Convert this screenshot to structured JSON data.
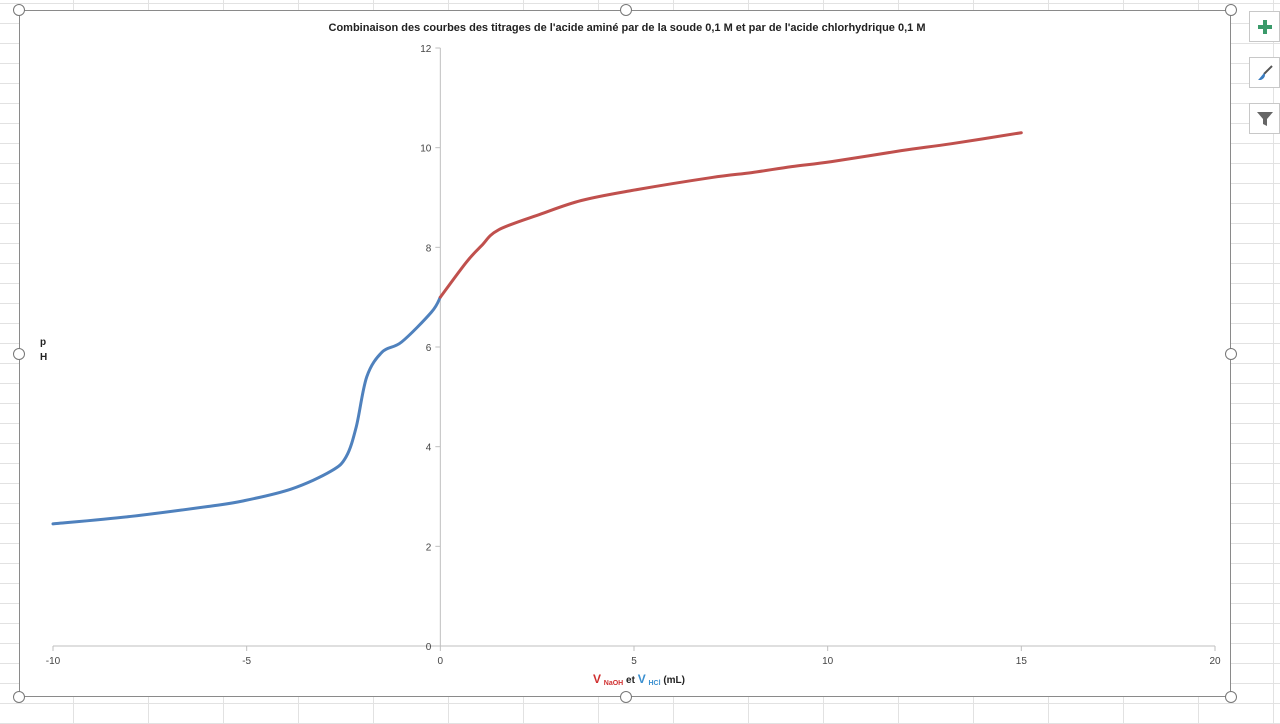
{
  "chart_data": {
    "type": "line",
    "title": "Combinaison des courbes des titrages de l'acide aminé par de la soude 0,1 M et par de l'acide chlorhydrique 0,1 M",
    "xlabel_parts": {
      "v1": "V",
      "sub1": "NaOH",
      "mid": " et ",
      "v2": "V",
      "sub2": "HCl",
      "unit": " (mL)"
    },
    "ylabel_parts": [
      "p",
      "H"
    ],
    "xlim": [
      -10,
      20
    ],
    "ylim": [
      0,
      12
    ],
    "xticks": [
      -10,
      -5,
      0,
      5,
      10,
      15,
      20
    ],
    "yticks": [
      0,
      2,
      4,
      6,
      8,
      10,
      12
    ],
    "grid": false,
    "series": [
      {
        "name": "HCl",
        "color": "#4f81bd",
        "x": [
          -10,
          -8,
          -6,
          -5.1,
          -3.85,
          -2.82,
          -2.43,
          -2.17,
          -1.9,
          -1.5,
          -1.0,
          -0.23,
          0
        ],
        "y": [
          2.45,
          2.6,
          2.8,
          2.91,
          3.15,
          3.51,
          3.8,
          4.4,
          5.4,
          5.9,
          6.1,
          6.7,
          7.0
        ]
      },
      {
        "name": "NaOH",
        "color": "#c0504d",
        "x": [
          0,
          0.67,
          1.06,
          1.5,
          2.6,
          3.64,
          4.94,
          7.0,
          8.04,
          9.07,
          10.1,
          11.9,
          13.2,
          15
        ],
        "y": [
          7.0,
          7.7,
          8.03,
          8.35,
          8.67,
          8.94,
          9.14,
          9.4,
          9.5,
          9.62,
          9.72,
          9.94,
          10.08,
          10.3
        ]
      }
    ]
  },
  "side_buttons": {
    "add": "chart-elements-icon",
    "style": "chart-styles-icon",
    "filter": "chart-filters-icon"
  }
}
